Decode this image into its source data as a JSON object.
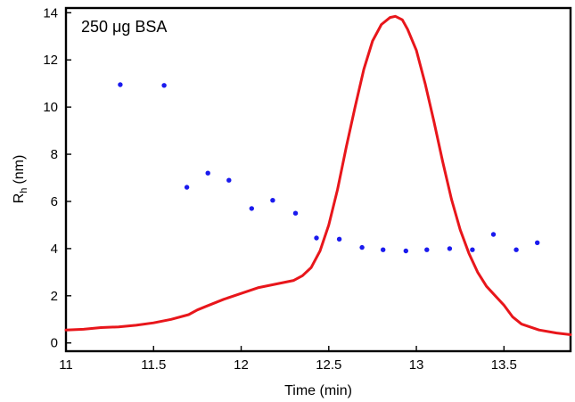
{
  "chart_data": {
    "type": "line",
    "annotation": "250 μg BSA",
    "xlabel": "Time (min)",
    "ylabel": "Rh (nm)",
    "ylabel_main": "R",
    "ylabel_subscript": "h",
    "ylabel_unit": "(nm)",
    "xlim": [
      11.0,
      13.88
    ],
    "ylim": [
      -0.35,
      14.2
    ],
    "x_ticks": [
      11,
      11.5,
      12,
      12.5,
      13,
      13.5
    ],
    "x_tick_labels": [
      "11",
      "11.5",
      "12",
      "12.5",
      "13",
      "13.5"
    ],
    "y_ticks": [
      0,
      2,
      4,
      6,
      8,
      10,
      12,
      14
    ],
    "y_tick_labels": [
      "0",
      "2",
      "4",
      "6",
      "8",
      "10",
      "12",
      "14"
    ],
    "grid": false,
    "series": [
      {
        "kind": "line",
        "color": "#e8161b",
        "points": [
          [
            11.0,
            0.55
          ],
          [
            11.1,
            0.58
          ],
          [
            11.2,
            0.65
          ],
          [
            11.3,
            0.68
          ],
          [
            11.4,
            0.75
          ],
          [
            11.5,
            0.85
          ],
          [
            11.6,
            1.0
          ],
          [
            11.7,
            1.2
          ],
          [
            11.75,
            1.4
          ],
          [
            11.8,
            1.55
          ],
          [
            11.9,
            1.85
          ],
          [
            12.0,
            2.1
          ],
          [
            12.1,
            2.35
          ],
          [
            12.2,
            2.5
          ],
          [
            12.3,
            2.65
          ],
          [
            12.35,
            2.85
          ],
          [
            12.4,
            3.2
          ],
          [
            12.45,
            3.9
          ],
          [
            12.5,
            5.0
          ],
          [
            12.55,
            6.5
          ],
          [
            12.6,
            8.3
          ],
          [
            12.65,
            10.0
          ],
          [
            12.7,
            11.6
          ],
          [
            12.75,
            12.8
          ],
          [
            12.8,
            13.5
          ],
          [
            12.85,
            13.8
          ],
          [
            12.88,
            13.85
          ],
          [
            12.92,
            13.7
          ],
          [
            12.95,
            13.3
          ],
          [
            13.0,
            12.4
          ],
          [
            13.05,
            11.0
          ],
          [
            13.1,
            9.4
          ],
          [
            13.15,
            7.7
          ],
          [
            13.2,
            6.1
          ],
          [
            13.25,
            4.8
          ],
          [
            13.3,
            3.8
          ],
          [
            13.35,
            3.0
          ],
          [
            13.4,
            2.4
          ],
          [
            13.45,
            2.0
          ],
          [
            13.5,
            1.6
          ],
          [
            13.55,
            1.1
          ],
          [
            13.6,
            0.8
          ],
          [
            13.7,
            0.55
          ],
          [
            13.8,
            0.42
          ],
          [
            13.88,
            0.35
          ]
        ]
      },
      {
        "kind": "scatter",
        "color": "#1a1aee",
        "points": [
          [
            11.31,
            10.95
          ],
          [
            11.56,
            10.92
          ],
          [
            11.69,
            6.6
          ],
          [
            11.81,
            7.2
          ],
          [
            11.93,
            6.9
          ],
          [
            12.06,
            5.7
          ],
          [
            12.18,
            6.05
          ],
          [
            12.31,
            5.5
          ],
          [
            12.43,
            4.45
          ],
          [
            12.56,
            4.4
          ],
          [
            12.69,
            4.05
          ],
          [
            12.81,
            3.95
          ],
          [
            12.94,
            3.9
          ],
          [
            13.06,
            3.95
          ],
          [
            13.19,
            4.0
          ],
          [
            13.32,
            3.95
          ],
          [
            13.44,
            4.6
          ],
          [
            13.57,
            3.95
          ],
          [
            13.69,
            4.25
          ]
        ]
      }
    ]
  }
}
